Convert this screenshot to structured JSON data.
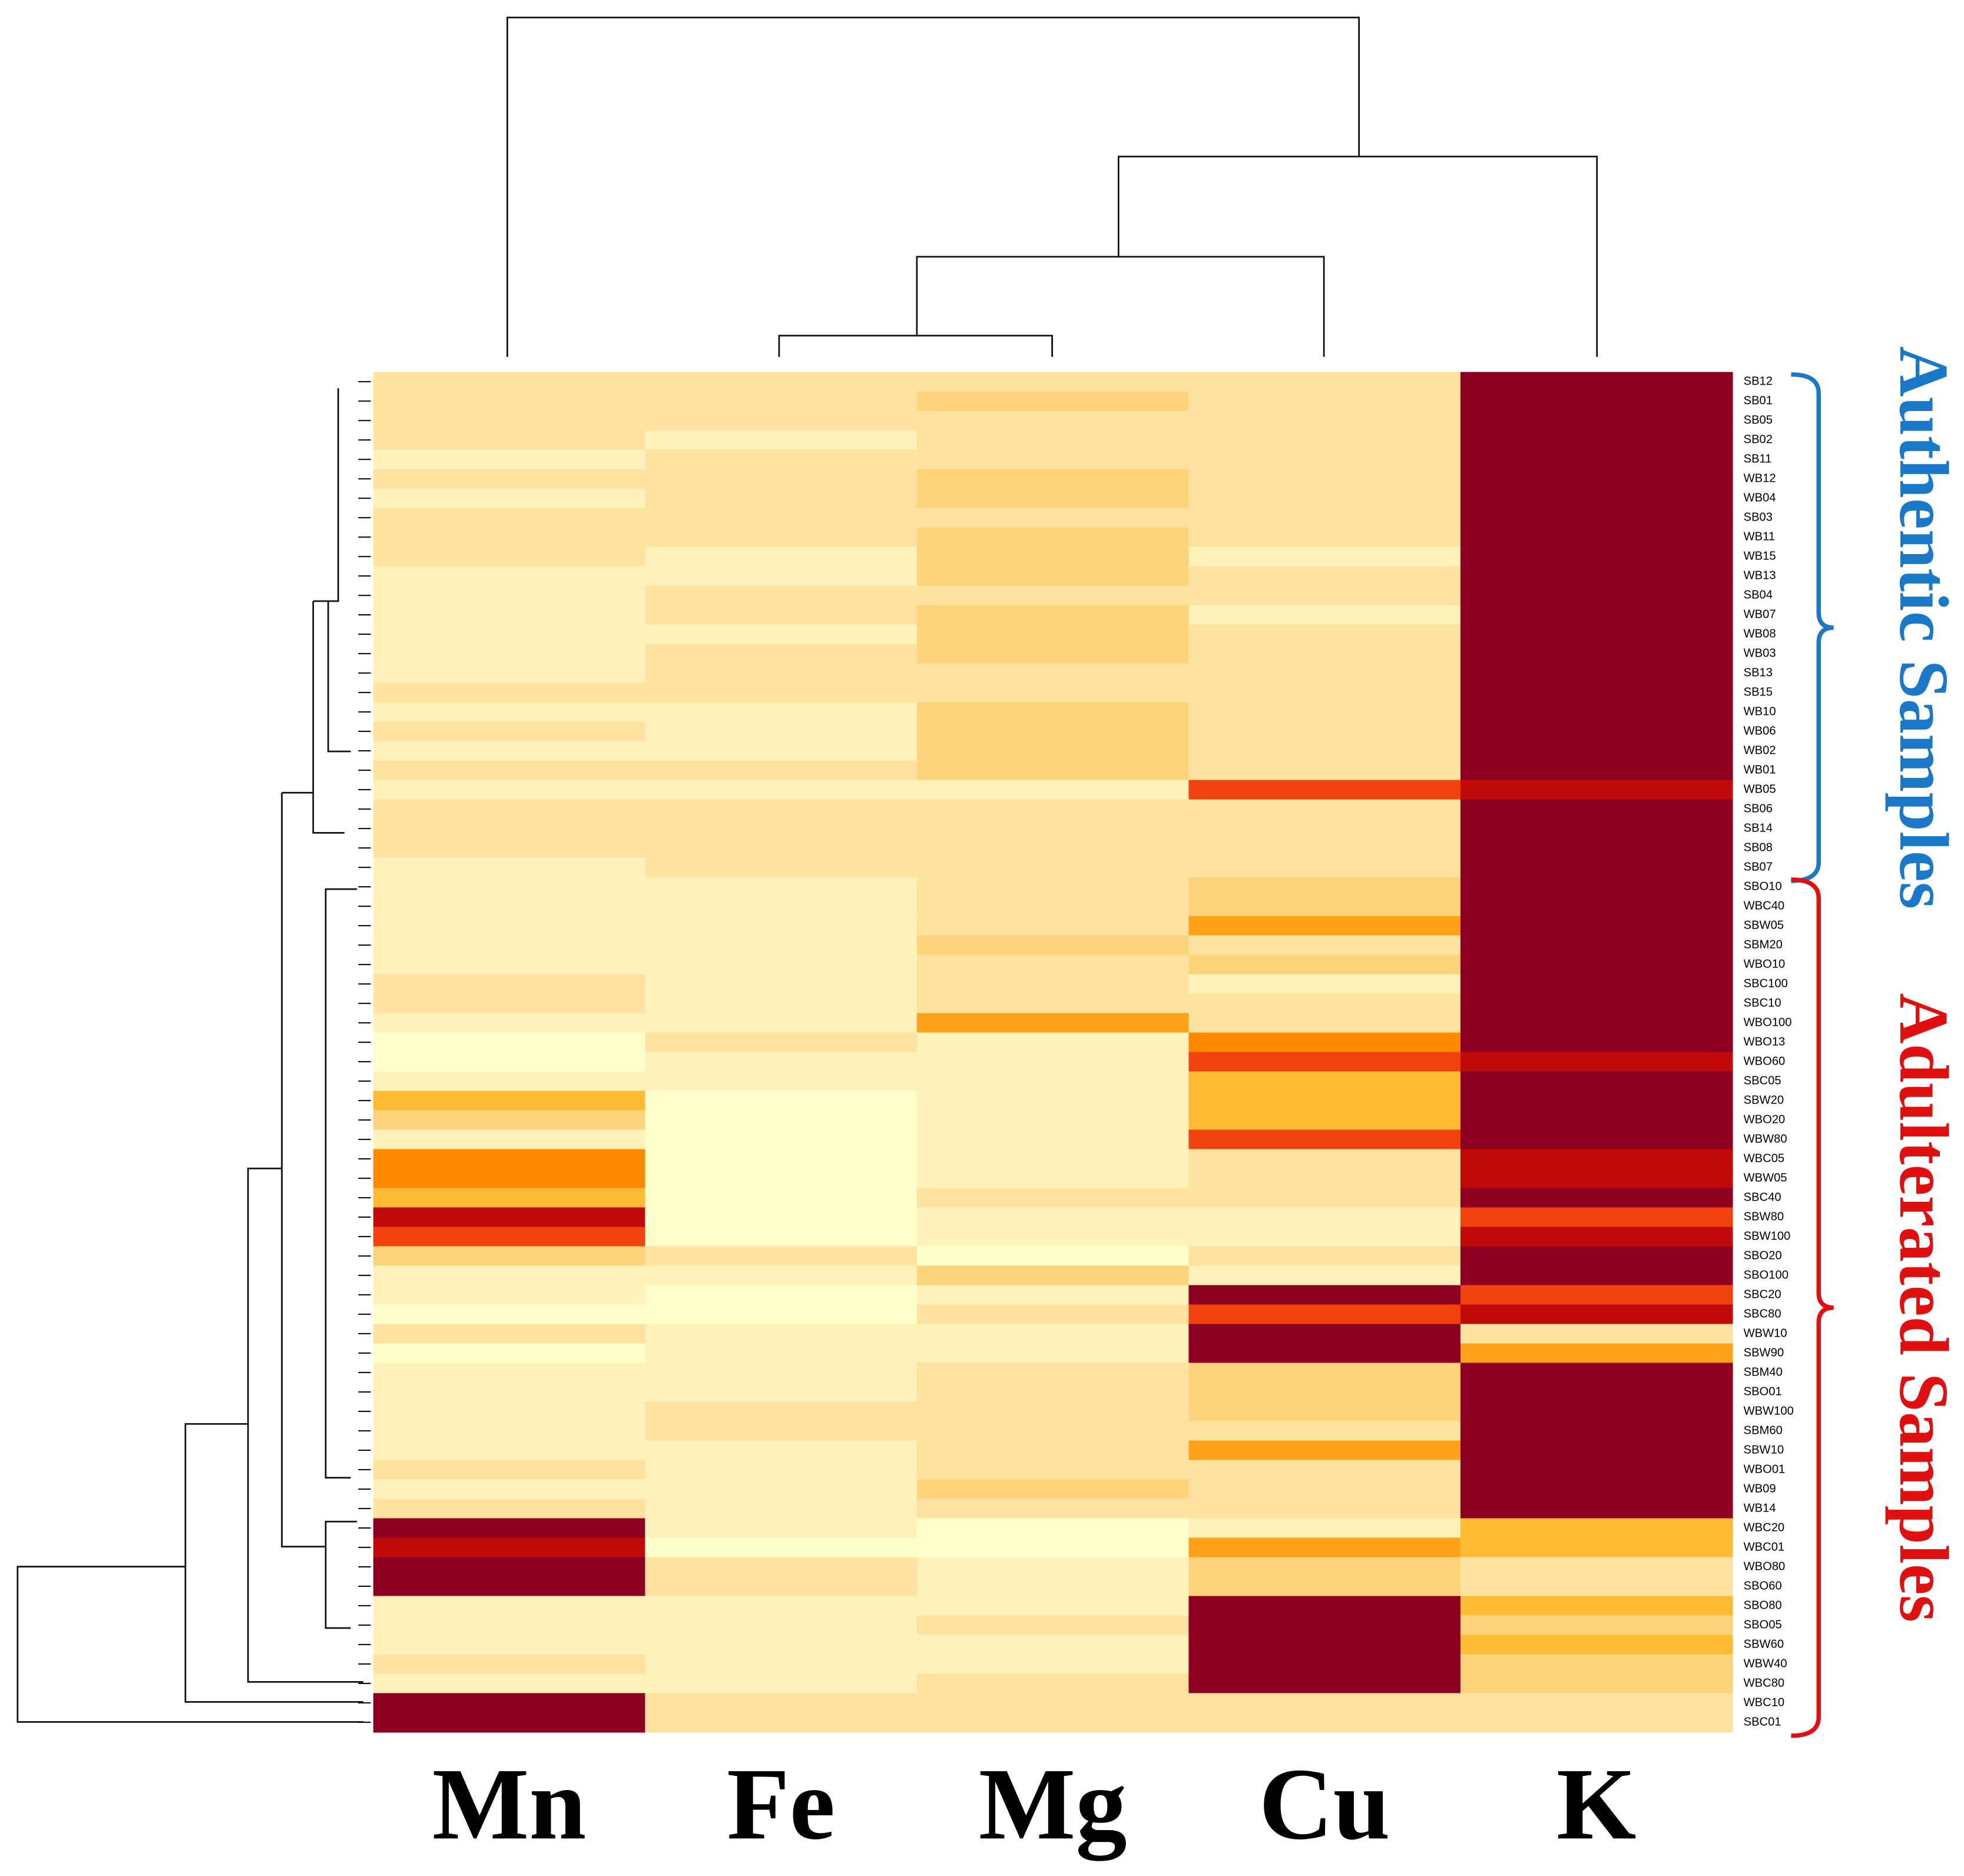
{
  "chart_data": {
    "type": "heatmap",
    "columns": [
      "Mn",
      "Fe",
      "Mg",
      "Cu",
      "K"
    ],
    "rows": [
      "SB12",
      "SB01",
      "SB05",
      "SB02",
      "SB11",
      "WB12",
      "WB04",
      "SB03",
      "WB11",
      "WB15",
      "WB13",
      "SB04",
      "WB07",
      "WB08",
      "WB03",
      "SB13",
      "SB15",
      "WB10",
      "WB06",
      "WB02",
      "WB01",
      "WB05",
      "SB06",
      "SB14",
      "SB08",
      "SB07",
      "SBO10",
      "WBC40",
      "SBW05",
      "SBM20",
      "WBO10",
      "SBC100",
      "SBC10",
      "WBO100",
      "WBO13",
      "WBO60",
      "SBC05",
      "SBW20",
      "WBO20",
      "WBW80",
      "WBC05",
      "WBW05",
      "SBC40",
      "SBW80",
      "SBW100",
      "SBO20",
      "SBO100",
      "SBC20",
      "SBC80",
      "WBW10",
      "SBW90",
      "SBM40",
      "SBO01",
      "WBW100",
      "SBM60",
      "SBW10",
      "WBO01",
      "WB09",
      "WB14",
      "WBC20",
      "WBC01",
      "WBO80",
      "SBO60",
      "SBO80",
      "SBO05",
      "SBW60",
      "WBW40",
      "WBC80",
      "WBC10",
      "SBC01"
    ],
    "colors": [
      [
        "#fee2a0",
        "#fee2a0",
        "#fee2a0",
        "#fee2a0",
        "#8e0021"
      ],
      [
        "#fee2a0",
        "#fee2a0",
        "#fdd47c",
        "#fee2a0",
        "#8e0021"
      ],
      [
        "#fee2a0",
        "#fee2a0",
        "#fee2a0",
        "#fee2a0",
        "#8e0021"
      ],
      [
        "#fee2a0",
        "#fff1ba",
        "#fee2a0",
        "#fee2a0",
        "#8e0021"
      ],
      [
        "#fff1ba",
        "#fee2a0",
        "#fee2a0",
        "#fee2a0",
        "#8e0021"
      ],
      [
        "#fee2a0",
        "#fee2a0",
        "#fdd47c",
        "#fee2a0",
        "#8e0021"
      ],
      [
        "#fff1ba",
        "#fee2a0",
        "#fdd47c",
        "#fee2a0",
        "#8e0021"
      ],
      [
        "#fee2a0",
        "#fee2a0",
        "#fee2a0",
        "#fee2a0",
        "#8e0021"
      ],
      [
        "#fee2a0",
        "#fee2a0",
        "#fdd47c",
        "#fee2a0",
        "#8e0021"
      ],
      [
        "#fee2a0",
        "#fff1ba",
        "#fdd47c",
        "#fff1ba",
        "#8e0021"
      ],
      [
        "#fff1ba",
        "#fff1ba",
        "#fdd47c",
        "#fee2a0",
        "#8e0021"
      ],
      [
        "#fff1ba",
        "#fee2a0",
        "#fee2a0",
        "#fee2a0",
        "#8e0021"
      ],
      [
        "#fff1ba",
        "#fee2a0",
        "#fdd47c",
        "#fff1ba",
        "#8e0021"
      ],
      [
        "#fff1ba",
        "#fff1ba",
        "#fdd47c",
        "#fee2a0",
        "#8e0021"
      ],
      [
        "#fff1ba",
        "#fee2a0",
        "#fdd47c",
        "#fee2a0",
        "#8e0021"
      ],
      [
        "#fff1ba",
        "#fee2a0",
        "#fee2a0",
        "#fee2a0",
        "#8e0021"
      ],
      [
        "#fee2a0",
        "#fee2a0",
        "#fee2a0",
        "#fee2a0",
        "#8e0021"
      ],
      [
        "#fff1ba",
        "#fff1ba",
        "#fdd47c",
        "#fee2a0",
        "#8e0021"
      ],
      [
        "#fee2a0",
        "#fff1ba",
        "#fdd47c",
        "#fee2a0",
        "#8e0021"
      ],
      [
        "#fff1ba",
        "#fff1ba",
        "#fdd47c",
        "#fee2a0",
        "#8e0021"
      ],
      [
        "#fee2a0",
        "#fee2a0",
        "#fdd47c",
        "#fee2a0",
        "#8e0021"
      ],
      [
        "#fff1ba",
        "#fff1ba",
        "#fff1ba",
        "#f2420f",
        "#c10a0a"
      ],
      [
        "#fee2a0",
        "#fee2a0",
        "#fee2a0",
        "#fee2a0",
        "#8e0021"
      ],
      [
        "#fee2a0",
        "#fee2a0",
        "#fee2a0",
        "#fee2a0",
        "#8e0021"
      ],
      [
        "#fee2a0",
        "#fee2a0",
        "#fee2a0",
        "#fee2a0",
        "#8e0021"
      ],
      [
        "#fff1ba",
        "#fee2a0",
        "#fee2a0",
        "#fee2a0",
        "#8e0021"
      ],
      [
        "#fff1ba",
        "#fff1ba",
        "#fee2a0",
        "#fdd47c",
        "#8e0021"
      ],
      [
        "#fff1ba",
        "#fff1ba",
        "#fee2a0",
        "#fdd47c",
        "#8e0021"
      ],
      [
        "#fff1ba",
        "#fff1ba",
        "#fee2a0",
        "#ffa21a",
        "#8e0021"
      ],
      [
        "#fff1ba",
        "#fff1ba",
        "#fdd47c",
        "#fee2a0",
        "#8e0021"
      ],
      [
        "#fff1ba",
        "#fff1ba",
        "#fee2a0",
        "#fdd47c",
        "#8e0021"
      ],
      [
        "#fee2a0",
        "#fff1ba",
        "#fee2a0",
        "#fff1ba",
        "#8e0021"
      ],
      [
        "#fee2a0",
        "#fff1ba",
        "#fee2a0",
        "#fee2a0",
        "#8e0021"
      ],
      [
        "#fff1ba",
        "#fff1ba",
        "#ffa21a",
        "#fee2a0",
        "#8e0021"
      ],
      [
        "#ffffcc",
        "#fee2a0",
        "#fff1ba",
        "#ff8a00",
        "#8e0021"
      ],
      [
        "#ffffcc",
        "#fff1ba",
        "#fff1ba",
        "#f2420f",
        "#c10a0a"
      ],
      [
        "#fff1ba",
        "#fff1ba",
        "#fff1ba",
        "#ffbb33",
        "#8e0021"
      ],
      [
        "#ffbb33",
        "#ffffcc",
        "#fff1ba",
        "#ffbb33",
        "#8e0021"
      ],
      [
        "#fdd47c",
        "#ffffcc",
        "#fff1ba",
        "#ffbb33",
        "#8e0021"
      ],
      [
        "#fff1ba",
        "#ffffcc",
        "#fff1ba",
        "#f2420f",
        "#8e0021"
      ],
      [
        "#ff8a00",
        "#ffffcc",
        "#fff1ba",
        "#fee2a0",
        "#c10a0a"
      ],
      [
        "#ff8a00",
        "#ffffcc",
        "#fff1ba",
        "#fee2a0",
        "#c10a0a"
      ],
      [
        "#ffbb33",
        "#ffffcc",
        "#fee2a0",
        "#fee2a0",
        "#8e0021"
      ],
      [
        "#c10a0a",
        "#ffffcc",
        "#fff1ba",
        "#fff1ba",
        "#f2420f"
      ],
      [
        "#f2420f",
        "#ffffcc",
        "#fff1ba",
        "#fff1ba",
        "#c10a0a"
      ],
      [
        "#fdd47c",
        "#fee2a0",
        "#ffffcc",
        "#fee2a0",
        "#8e0021"
      ],
      [
        "#fff1ba",
        "#fff1ba",
        "#fdd47c",
        "#fff1ba",
        "#8e0021"
      ],
      [
        "#fff1ba",
        "#ffffcc",
        "#fff1ba",
        "#8e0021",
        "#f2420f"
      ],
      [
        "#ffffcc",
        "#ffffcc",
        "#fee2a0",
        "#f2420f",
        "#c10a0a"
      ],
      [
        "#fee2a0",
        "#fff1ba",
        "#fff1ba",
        "#8e0021",
        "#fee2a0"
      ],
      [
        "#ffffcc",
        "#fff1ba",
        "#fff1ba",
        "#8e0021",
        "#ffa21a"
      ],
      [
        "#fff1ba",
        "#fff1ba",
        "#fee2a0",
        "#fdd47c",
        "#8e0021"
      ],
      [
        "#fff1ba",
        "#fff1ba",
        "#fee2a0",
        "#fdd47c",
        "#8e0021"
      ],
      [
        "#fff1ba",
        "#fee2a0",
        "#fee2a0",
        "#fdd47c",
        "#8e0021"
      ],
      [
        "#fff1ba",
        "#fee2a0",
        "#fee2a0",
        "#fee2a0",
        "#8e0021"
      ],
      [
        "#fff1ba",
        "#fff1ba",
        "#fee2a0",
        "#ffa21a",
        "#8e0021"
      ],
      [
        "#fee2a0",
        "#fff1ba",
        "#fee2a0",
        "#fee2a0",
        "#8e0021"
      ],
      [
        "#fff1ba",
        "#fff1ba",
        "#fdd47c",
        "#fee2a0",
        "#8e0021"
      ],
      [
        "#fee2a0",
        "#fff1ba",
        "#fee2a0",
        "#fee2a0",
        "#8e0021"
      ],
      [
        "#8e0021",
        "#fff1ba",
        "#ffffcc",
        "#fff1ba",
        "#ffbb33"
      ],
      [
        "#c10a0a",
        "#ffffcc",
        "#ffffcc",
        "#ffa21a",
        "#ffbb33"
      ],
      [
        "#8e0021",
        "#fee2a0",
        "#fff1ba",
        "#fdd47c",
        "#fee2a0"
      ],
      [
        "#8e0021",
        "#fee2a0",
        "#fff1ba",
        "#fdd47c",
        "#fee2a0"
      ],
      [
        "#fff1ba",
        "#fff1ba",
        "#fff1ba",
        "#8e0021",
        "#ffbb33"
      ],
      [
        "#fff1ba",
        "#fff1ba",
        "#fee2a0",
        "#8e0021",
        "#fdd47c"
      ],
      [
        "#fff1ba",
        "#fff1ba",
        "#fff1ba",
        "#8e0021",
        "#ffbb33"
      ],
      [
        "#fee2a0",
        "#fff1ba",
        "#fff1ba",
        "#8e0021",
        "#fdd47c"
      ],
      [
        "#fff1ba",
        "#fff1ba",
        "#fee2a0",
        "#8e0021",
        "#fdd47c"
      ],
      [
        "#8e0021",
        "#fee2a0",
        "#fee2a0",
        "#fee2a0",
        "#fee2a0"
      ],
      [
        "#8e0021",
        "#fee2a0",
        "#fee2a0",
        "#fee2a0",
        "#fee2a0"
      ]
    ],
    "groups": [
      {
        "label": "Authentic Samples",
        "color": "#1a78c8"
      },
      {
        "label": "Adulterated Samples",
        "color": "#e01010"
      }
    ]
  }
}
